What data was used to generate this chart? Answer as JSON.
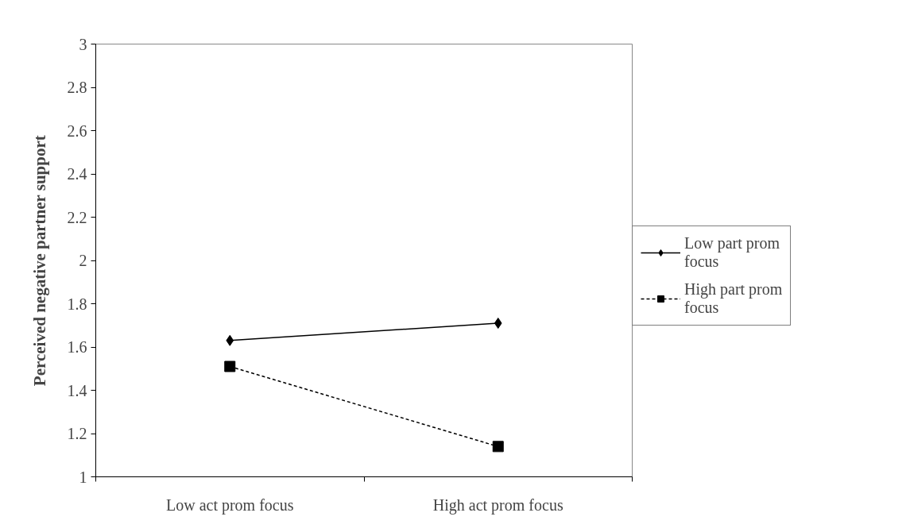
{
  "chart_data": {
    "type": "line",
    "ylabel": "Perceived negative partner support",
    "categories": [
      "Low act prom focus",
      "High act prom focus"
    ],
    "series": [
      {
        "name": "Low part prom focus",
        "color": "#000000",
        "values": [
          1.63,
          1.71
        ],
        "marker": "diamond",
        "line_style": "solid"
      },
      {
        "name": "High part prom focus",
        "color": "#000000",
        "values": [
          1.51,
          1.14
        ],
        "marker": "square",
        "line_style": "dashed"
      }
    ],
    "ylim": [
      1,
      3
    ],
    "yticks": [
      1,
      1.2,
      1.4,
      1.6,
      1.8,
      2,
      2.2,
      2.4,
      2.6,
      2.8,
      3
    ],
    "grid": false,
    "legend": "right"
  }
}
